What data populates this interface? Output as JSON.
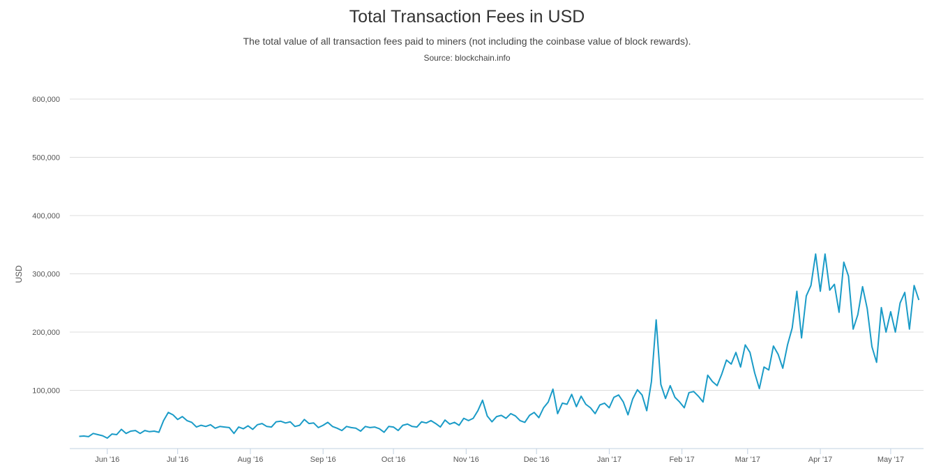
{
  "chart_data": {
    "type": "line",
    "title": "Total Transaction Fees in USD",
    "subtitle": "The total value of all transaction fees paid to miners (not including the coinbase value of block rewards).",
    "source": "Source: blockchain.info",
    "ylabel": "USD",
    "ylim": [
      0,
      600000
    ],
    "yticks": [
      100000,
      200000,
      300000,
      400000,
      500000,
      600000
    ],
    "ytick_labels": [
      "100,000",
      "200,000",
      "300,000",
      "400,000",
      "500,000",
      "600,000"
    ],
    "x_start": "2016-05-16",
    "x_end": "2017-05-15",
    "xticks": [
      {
        "date": "2016-06-01",
        "label": "Jun '16"
      },
      {
        "date": "2016-07-01",
        "label": "Jul '16"
      },
      {
        "date": "2016-08-01",
        "label": "Aug '16"
      },
      {
        "date": "2016-09-01",
        "label": "Sep '16"
      },
      {
        "date": "2016-10-01",
        "label": "Oct '16"
      },
      {
        "date": "2016-11-01",
        "label": "Nov '16"
      },
      {
        "date": "2016-12-01",
        "label": "Dec '16"
      },
      {
        "date": "2017-01-01",
        "label": "Jan '17"
      },
      {
        "date": "2017-02-01",
        "label": "Feb '17"
      },
      {
        "date": "2017-03-01",
        "label": "Mar '17"
      },
      {
        "date": "2017-04-01",
        "label": "Apr '17"
      },
      {
        "date": "2017-05-01",
        "label": "May '17"
      }
    ],
    "grid": true,
    "legend": "none",
    "color": "#1a9bc7",
    "series": [
      {
        "name": "",
        "values": [
          [
            "2016-05-20",
            21000
          ],
          [
            "2016-05-22",
            21500
          ],
          [
            "2016-05-24",
            20500
          ],
          [
            "2016-05-26",
            26000
          ],
          [
            "2016-05-28",
            24000
          ],
          [
            "2016-05-30",
            22000
          ],
          [
            "2016-06-01",
            18000
          ],
          [
            "2016-06-03",
            25000
          ],
          [
            "2016-06-05",
            24000
          ],
          [
            "2016-06-07",
            33000
          ],
          [
            "2016-06-09",
            26000
          ],
          [
            "2016-06-11",
            30000
          ],
          [
            "2016-06-13",
            31000
          ],
          [
            "2016-06-15",
            26000
          ],
          [
            "2016-06-17",
            31000
          ],
          [
            "2016-06-19",
            29000
          ],
          [
            "2016-06-21",
            30000
          ],
          [
            "2016-06-23",
            28000
          ],
          [
            "2016-06-25",
            48000
          ],
          [
            "2016-06-27",
            62000
          ],
          [
            "2016-06-29",
            58000
          ],
          [
            "2016-07-01",
            50000
          ],
          [
            "2016-07-03",
            55000
          ],
          [
            "2016-07-05",
            48000
          ],
          [
            "2016-07-07",
            45000
          ],
          [
            "2016-07-09",
            37000
          ],
          [
            "2016-07-11",
            40000
          ],
          [
            "2016-07-13",
            38000
          ],
          [
            "2016-07-15",
            41000
          ],
          [
            "2016-07-17",
            35000
          ],
          [
            "2016-07-19",
            38000
          ],
          [
            "2016-07-21",
            37000
          ],
          [
            "2016-07-23",
            36000
          ],
          [
            "2016-07-25",
            26000
          ],
          [
            "2016-07-27",
            37000
          ],
          [
            "2016-07-29",
            34000
          ],
          [
            "2016-07-31",
            39000
          ],
          [
            "2016-08-02",
            33000
          ],
          [
            "2016-08-04",
            41000
          ],
          [
            "2016-08-06",
            43000
          ],
          [
            "2016-08-08",
            38000
          ],
          [
            "2016-08-10",
            37000
          ],
          [
            "2016-08-12",
            46000
          ],
          [
            "2016-08-14",
            47000
          ],
          [
            "2016-08-16",
            44000
          ],
          [
            "2016-08-18",
            46000
          ],
          [
            "2016-08-20",
            38000
          ],
          [
            "2016-08-22",
            40000
          ],
          [
            "2016-08-24",
            50000
          ],
          [
            "2016-08-26",
            43000
          ],
          [
            "2016-08-28",
            44000
          ],
          [
            "2016-08-30",
            36000
          ],
          [
            "2016-09-01",
            40000
          ],
          [
            "2016-09-03",
            45000
          ],
          [
            "2016-09-05",
            38000
          ],
          [
            "2016-09-07",
            35000
          ],
          [
            "2016-09-09",
            31000
          ],
          [
            "2016-09-11",
            38000
          ],
          [
            "2016-09-13",
            36000
          ],
          [
            "2016-09-15",
            35000
          ],
          [
            "2016-09-17",
            30000
          ],
          [
            "2016-09-19",
            38000
          ],
          [
            "2016-09-21",
            36000
          ],
          [
            "2016-09-23",
            37000
          ],
          [
            "2016-09-25",
            34000
          ],
          [
            "2016-09-27",
            28000
          ],
          [
            "2016-09-29",
            38000
          ],
          [
            "2016-10-01",
            37000
          ],
          [
            "2016-10-03",
            31000
          ],
          [
            "2016-10-05",
            40000
          ],
          [
            "2016-10-07",
            42000
          ],
          [
            "2016-10-09",
            38000
          ],
          [
            "2016-10-11",
            37000
          ],
          [
            "2016-10-13",
            46000
          ],
          [
            "2016-10-15",
            44000
          ],
          [
            "2016-10-17",
            48000
          ],
          [
            "2016-10-19",
            43000
          ],
          [
            "2016-10-21",
            37000
          ],
          [
            "2016-10-23",
            49000
          ],
          [
            "2016-10-25",
            42000
          ],
          [
            "2016-10-27",
            45000
          ],
          [
            "2016-10-29",
            40000
          ],
          [
            "2016-10-31",
            52000
          ],
          [
            "2016-11-02",
            48000
          ],
          [
            "2016-11-04",
            52000
          ],
          [
            "2016-11-06",
            65000
          ],
          [
            "2016-11-08",
            83000
          ],
          [
            "2016-11-10",
            56000
          ],
          [
            "2016-11-12",
            46000
          ],
          [
            "2016-11-14",
            55000
          ],
          [
            "2016-11-16",
            57000
          ],
          [
            "2016-11-18",
            52000
          ],
          [
            "2016-11-20",
            60000
          ],
          [
            "2016-11-22",
            56000
          ],
          [
            "2016-11-24",
            48000
          ],
          [
            "2016-11-26",
            45000
          ],
          [
            "2016-11-28",
            57000
          ],
          [
            "2016-11-30",
            62000
          ],
          [
            "2016-12-02",
            53000
          ],
          [
            "2016-12-04",
            70000
          ],
          [
            "2016-12-06",
            80000
          ],
          [
            "2016-12-08",
            102000
          ],
          [
            "2016-12-10",
            60000
          ],
          [
            "2016-12-12",
            78000
          ],
          [
            "2016-12-14",
            76000
          ],
          [
            "2016-12-16",
            93000
          ],
          [
            "2016-12-18",
            72000
          ],
          [
            "2016-12-20",
            90000
          ],
          [
            "2016-12-22",
            76000
          ],
          [
            "2016-12-24",
            70000
          ],
          [
            "2016-12-26",
            60000
          ],
          [
            "2016-12-28",
            75000
          ],
          [
            "2016-12-30",
            78000
          ],
          [
            "2017-01-01",
            70000
          ],
          [
            "2017-01-03",
            88000
          ],
          [
            "2017-01-05",
            92000
          ],
          [
            "2017-01-07",
            80000
          ],
          [
            "2017-01-09",
            58000
          ],
          [
            "2017-01-11",
            85000
          ],
          [
            "2017-01-13",
            101000
          ],
          [
            "2017-01-15",
            92000
          ],
          [
            "2017-01-17",
            65000
          ],
          [
            "2017-01-19",
            115000
          ],
          [
            "2017-01-21",
            221000
          ],
          [
            "2017-01-23",
            110000
          ],
          [
            "2017-01-25",
            86000
          ],
          [
            "2017-01-27",
            108000
          ],
          [
            "2017-01-29",
            88000
          ],
          [
            "2017-01-31",
            80000
          ],
          [
            "2017-02-02",
            70000
          ],
          [
            "2017-02-04",
            96000
          ],
          [
            "2017-02-06",
            98000
          ],
          [
            "2017-02-08",
            90000
          ],
          [
            "2017-02-10",
            80000
          ],
          [
            "2017-02-12",
            126000
          ],
          [
            "2017-02-14",
            115000
          ],
          [
            "2017-02-16",
            108000
          ],
          [
            "2017-02-18",
            128000
          ],
          [
            "2017-02-20",
            152000
          ],
          [
            "2017-02-22",
            145000
          ],
          [
            "2017-02-24",
            165000
          ],
          [
            "2017-02-26",
            140000
          ],
          [
            "2017-02-28",
            178000
          ],
          [
            "2017-03-02",
            165000
          ],
          [
            "2017-03-04",
            130000
          ],
          [
            "2017-03-06",
            103000
          ],
          [
            "2017-03-08",
            140000
          ],
          [
            "2017-03-10",
            135000
          ],
          [
            "2017-03-12",
            176000
          ],
          [
            "2017-03-14",
            162000
          ],
          [
            "2017-03-16",
            138000
          ],
          [
            "2017-03-18",
            178000
          ],
          [
            "2017-03-20",
            207000
          ],
          [
            "2017-03-22",
            270000
          ],
          [
            "2017-03-24",
            190000
          ],
          [
            "2017-03-26",
            262000
          ],
          [
            "2017-03-28",
            280000
          ],
          [
            "2017-03-30",
            334000
          ],
          [
            "2017-04-01",
            270000
          ],
          [
            "2017-04-03",
            334000
          ],
          [
            "2017-04-05",
            272000
          ],
          [
            "2017-04-07",
            282000
          ],
          [
            "2017-04-09",
            234000
          ],
          [
            "2017-04-11",
            320000
          ],
          [
            "2017-04-13",
            296000
          ],
          [
            "2017-04-15",
            205000
          ],
          [
            "2017-04-17",
            230000
          ],
          [
            "2017-04-19",
            278000
          ],
          [
            "2017-04-21",
            240000
          ],
          [
            "2017-04-23",
            175000
          ],
          [
            "2017-04-25",
            148000
          ],
          [
            "2017-04-27",
            242000
          ],
          [
            "2017-04-29",
            200000
          ],
          [
            "2017-05-01",
            235000
          ],
          [
            "2017-05-03",
            200000
          ],
          [
            "2017-05-05",
            250000
          ],
          [
            "2017-05-07",
            268000
          ],
          [
            "2017-05-09",
            205000
          ],
          [
            "2017-05-11",
            280000
          ],
          [
            "2017-05-13",
            255000
          ]
        ]
      }
    ]
  }
}
